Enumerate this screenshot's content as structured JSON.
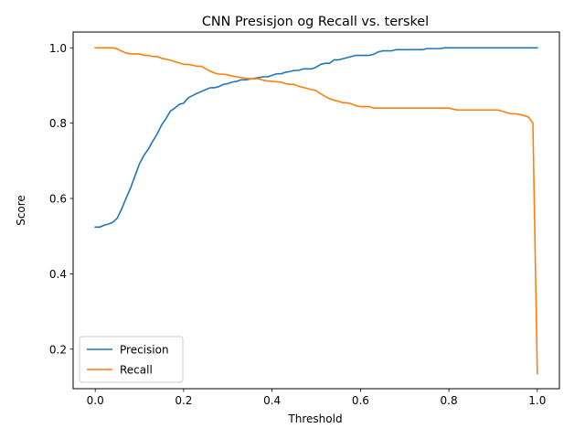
{
  "chart_data": {
    "type": "line",
    "title": "CNN Presisjon og Recall vs. terskel",
    "xlabel": "Threshold",
    "ylabel": "Score",
    "xlim": [
      -0.05,
      1.05
    ],
    "ylim": [
      0.095,
      1.042
    ],
    "xticks": [
      0.0,
      0.2,
      0.4,
      0.6,
      0.8,
      1.0
    ],
    "xtick_labels": [
      "0.0",
      "0.2",
      "0.4",
      "0.6",
      "0.8",
      "1.0"
    ],
    "yticks": [
      0.2,
      0.4,
      0.6,
      0.8,
      1.0
    ],
    "ytick_labels": [
      "0.2",
      "0.4",
      "0.6",
      "0.8",
      "1.0"
    ],
    "grid": false,
    "legend_position": "lower-left",
    "series": [
      {
        "name": "Precision",
        "color": "#1f77b4",
        "x": [
          0.0,
          0.01,
          0.02,
          0.03,
          0.04,
          0.05,
          0.06,
          0.07,
          0.08,
          0.09,
          0.1,
          0.11,
          0.12,
          0.13,
          0.14,
          0.15,
          0.16,
          0.17,
          0.18,
          0.19,
          0.2,
          0.21,
          0.22,
          0.23,
          0.24,
          0.25,
          0.26,
          0.27,
          0.28,
          0.29,
          0.3,
          0.31,
          0.32,
          0.33,
          0.34,
          0.35,
          0.36,
          0.37,
          0.38,
          0.39,
          0.4,
          0.41,
          0.42,
          0.43,
          0.44,
          0.45,
          0.46,
          0.47,
          0.48,
          0.49,
          0.5,
          0.51,
          0.52,
          0.53,
          0.54,
          0.55,
          0.56,
          0.57,
          0.58,
          0.59,
          0.6,
          0.61,
          0.62,
          0.63,
          0.64,
          0.65,
          0.66,
          0.67,
          0.68,
          0.69,
          0.7,
          0.72,
          0.74,
          0.75,
          0.76,
          0.78,
          0.79,
          0.8,
          0.85,
          0.9,
          0.95,
          1.0
        ],
        "y": [
          0.524,
          0.524,
          0.529,
          0.532,
          0.537,
          0.548,
          0.573,
          0.601,
          0.628,
          0.66,
          0.692,
          0.714,
          0.731,
          0.752,
          0.771,
          0.795,
          0.812,
          0.832,
          0.84,
          0.85,
          0.853,
          0.867,
          0.873,
          0.879,
          0.884,
          0.889,
          0.894,
          0.894,
          0.897,
          0.903,
          0.905,
          0.909,
          0.911,
          0.915,
          0.915,
          0.917,
          0.919,
          0.921,
          0.923,
          0.923,
          0.927,
          0.931,
          0.931,
          0.935,
          0.937,
          0.94,
          0.94,
          0.944,
          0.944,
          0.944,
          0.949,
          0.956,
          0.959,
          0.959,
          0.968,
          0.968,
          0.971,
          0.974,
          0.977,
          0.98,
          0.98,
          0.98,
          0.98,
          0.983,
          0.989,
          0.992,
          0.992,
          0.992,
          0.995,
          0.995,
          0.995,
          0.995,
          0.995,
          0.998,
          0.998,
          0.998,
          1.0,
          1.0,
          1.0,
          1.0,
          1.0,
          1.0
        ]
      },
      {
        "name": "Recall",
        "color": "#ff7f0e",
        "x": [
          0.0,
          0.01,
          0.02,
          0.03,
          0.04,
          0.05,
          0.06,
          0.07,
          0.08,
          0.09,
          0.1,
          0.11,
          0.12,
          0.13,
          0.14,
          0.15,
          0.16,
          0.17,
          0.18,
          0.19,
          0.2,
          0.21,
          0.22,
          0.23,
          0.24,
          0.25,
          0.26,
          0.27,
          0.28,
          0.29,
          0.3,
          0.31,
          0.32,
          0.33,
          0.34,
          0.35,
          0.36,
          0.37,
          0.38,
          0.39,
          0.4,
          0.41,
          0.42,
          0.43,
          0.44,
          0.45,
          0.46,
          0.47,
          0.48,
          0.49,
          0.5,
          0.51,
          0.52,
          0.53,
          0.54,
          0.55,
          0.56,
          0.57,
          0.58,
          0.59,
          0.6,
          0.61,
          0.62,
          0.63,
          0.64,
          0.65,
          0.7,
          0.75,
          0.79,
          0.8,
          0.81,
          0.82,
          0.85,
          0.9,
          0.91,
          0.92,
          0.93,
          0.94,
          0.95,
          0.96,
          0.97,
          0.98,
          0.99,
          1.0
        ],
        "y": [
          1.0,
          1.0,
          1.0,
          1.0,
          1.0,
          0.997,
          0.991,
          0.986,
          0.984,
          0.984,
          0.984,
          0.98,
          0.98,
          0.977,
          0.977,
          0.972,
          0.97,
          0.967,
          0.963,
          0.96,
          0.956,
          0.956,
          0.954,
          0.951,
          0.951,
          0.944,
          0.938,
          0.933,
          0.93,
          0.93,
          0.928,
          0.925,
          0.923,
          0.921,
          0.919,
          0.918,
          0.918,
          0.918,
          0.914,
          0.912,
          0.911,
          0.91,
          0.909,
          0.905,
          0.903,
          0.903,
          0.898,
          0.895,
          0.892,
          0.889,
          0.886,
          0.878,
          0.871,
          0.865,
          0.861,
          0.858,
          0.854,
          0.854,
          0.851,
          0.846,
          0.844,
          0.844,
          0.844,
          0.84,
          0.84,
          0.84,
          0.84,
          0.84,
          0.84,
          0.84,
          0.837,
          0.835,
          0.835,
          0.835,
          0.835,
          0.832,
          0.828,
          0.825,
          0.825,
          0.823,
          0.82,
          0.816,
          0.8,
          0.135
        ]
      }
    ]
  }
}
